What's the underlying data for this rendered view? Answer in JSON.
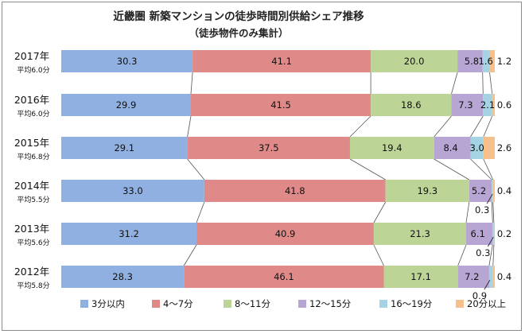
{
  "chart_data": {
    "type": "bar",
    "orientation": "horizontal-stacked-100",
    "title": "近畿圏 新築マンションの徒歩時間別供給シェア推移",
    "subtitle": "（徒歩物件のみ集計）",
    "categories": [
      "2017年",
      "2016年",
      "2015年",
      "2014年",
      "2013年",
      "2012年"
    ],
    "averages": [
      "平均6.0分",
      "平均6.0分",
      "平均6.8分",
      "平均5.5分",
      "平均5.6分",
      "平均5.8分"
    ],
    "series": [
      {
        "name": "3分以内",
        "color": "#8fb0e0",
        "values": [
          30.3,
          29.9,
          29.1,
          33.0,
          31.2,
          28.3
        ]
      },
      {
        "name": "4〜7分",
        "color": "#df8a89",
        "values": [
          41.1,
          41.5,
          37.5,
          41.8,
          40.9,
          46.1
        ]
      },
      {
        "name": "8〜11分",
        "color": "#bcd597",
        "values": [
          20.0,
          18.6,
          19.4,
          19.3,
          21.3,
          17.1
        ]
      },
      {
        "name": "12〜15分",
        "color": "#b7a6d3",
        "values": [
          5.8,
          7.3,
          8.4,
          5.2,
          6.1,
          7.2
        ]
      },
      {
        "name": "16〜19分",
        "color": "#a5d3e3",
        "values": [
          1.6,
          2.1,
          3.0,
          0.3,
          0.3,
          0.9
        ]
      },
      {
        "name": "20分以上",
        "color": "#f7c08a",
        "values": [
          1.2,
          0.6,
          2.6,
          0.4,
          0.2,
          0.4
        ]
      }
    ],
    "value_labels": [
      [
        "30.3",
        "41.1",
        "20.0",
        "5.8",
        "1.6",
        "1.2"
      ],
      [
        "29.9",
        "41.5",
        "18.6",
        "7.3",
        "2.1",
        "0.6"
      ],
      [
        "29.1",
        "37.5",
        "19.4",
        "8.4",
        "3.0",
        "2.6"
      ],
      [
        "33.0",
        "41.8",
        "19.3",
        "5.2",
        "0.3",
        "0.4"
      ],
      [
        "31.2",
        "40.9",
        "21.3",
        "6.1",
        "0.3",
        "0.2"
      ],
      [
        "28.3",
        "46.1",
        "17.1",
        "7.2",
        "0.9",
        "0.4"
      ]
    ],
    "xlim": [
      0,
      100
    ],
    "unit": "%",
    "legend_position": "bottom"
  }
}
